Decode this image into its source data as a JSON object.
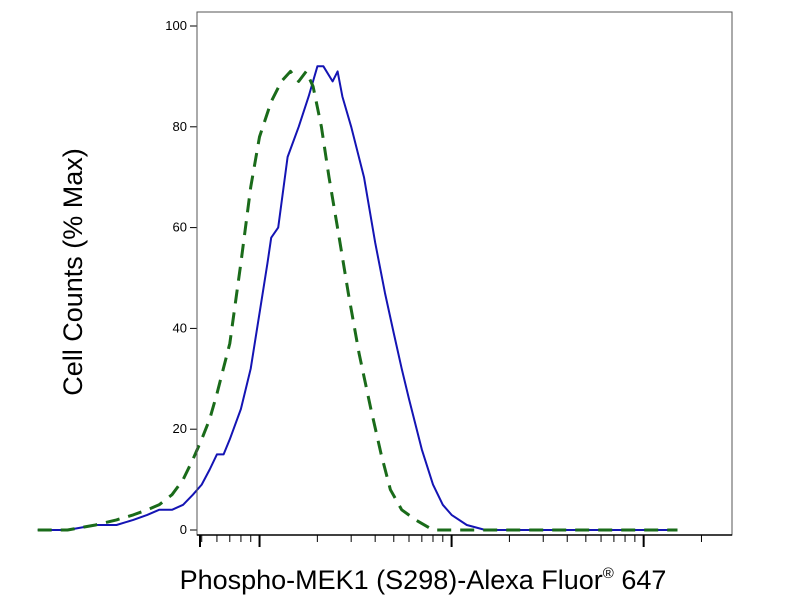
{
  "chart_data": {
    "type": "line",
    "title": "",
    "xlabel": "Phospho-MEK1 (S298)-Alexa Fluor",
    "xlabel_sup": "®",
    "xlabel_suffix": " 647",
    "ylabel": "Cell Counts (% Max)",
    "x_scale": "log",
    "ylim": [
      0,
      100
    ],
    "y_ticks": [
      0,
      20,
      40,
      60,
      80,
      100
    ],
    "y_tick_labels": [
      "0",
      "20",
      "40",
      "60",
      "80",
      "100"
    ],
    "x_major_ticks": [
      100,
      1000,
      10000
    ],
    "grid": false,
    "legend": "none",
    "series": [
      {
        "line_style": "solid",
        "color": "#1414b4",
        "points": [
          [
            7,
            0
          ],
          [
            10,
            0
          ],
          [
            14,
            1
          ],
          [
            18,
            1
          ],
          [
            22,
            2
          ],
          [
            26,
            3
          ],
          [
            30,
            4
          ],
          [
            35,
            4
          ],
          [
            40,
            5
          ],
          [
            45,
            7
          ],
          [
            50,
            9
          ],
          [
            55,
            12
          ],
          [
            60,
            15
          ],
          [
            65,
            15
          ],
          [
            70,
            18
          ],
          [
            80,
            24
          ],
          [
            90,
            32
          ],
          [
            100,
            43
          ],
          [
            110,
            53
          ],
          [
            115,
            58
          ],
          [
            125,
            60
          ],
          [
            140,
            74
          ],
          [
            160,
            80
          ],
          [
            180,
            86
          ],
          [
            200,
            92
          ],
          [
            215,
            92
          ],
          [
            240,
            89
          ],
          [
            255,
            91
          ],
          [
            270,
            86
          ],
          [
            300,
            80
          ],
          [
            350,
            70
          ],
          [
            400,
            57
          ],
          [
            450,
            47
          ],
          [
            500,
            39
          ],
          [
            550,
            32
          ],
          [
            600,
            26
          ],
          [
            700,
            16
          ],
          [
            800,
            9
          ],
          [
            900,
            5
          ],
          [
            1000,
            3
          ],
          [
            1200,
            1
          ],
          [
            1500,
            0
          ],
          [
            2000,
            0
          ],
          [
            5000,
            0
          ],
          [
            10000,
            0
          ],
          [
            15000,
            0
          ]
        ]
      },
      {
        "line_style": "dashed",
        "color": "#1a6b1a",
        "points": [
          [
            7,
            0
          ],
          [
            10,
            0
          ],
          [
            14,
            1
          ],
          [
            18,
            2
          ],
          [
            22,
            3
          ],
          [
            26,
            4
          ],
          [
            30,
            5
          ],
          [
            35,
            7
          ],
          [
            40,
            10
          ],
          [
            45,
            14
          ],
          [
            50,
            18
          ],
          [
            55,
            22
          ],
          [
            60,
            27
          ],
          [
            70,
            37
          ],
          [
            80,
            53
          ],
          [
            90,
            68
          ],
          [
            100,
            78
          ],
          [
            115,
            85
          ],
          [
            130,
            89
          ],
          [
            145,
            91
          ],
          [
            160,
            89
          ],
          [
            175,
            91
          ],
          [
            190,
            88
          ],
          [
            210,
            80
          ],
          [
            230,
            70
          ],
          [
            260,
            58
          ],
          [
            290,
            47
          ],
          [
            330,
            35
          ],
          [
            380,
            24
          ],
          [
            430,
            15
          ],
          [
            480,
            8
          ],
          [
            550,
            4
          ],
          [
            650,
            2
          ],
          [
            800,
            0
          ],
          [
            1200,
            0
          ],
          [
            5000,
            0
          ],
          [
            15000,
            0
          ]
        ]
      }
    ]
  }
}
